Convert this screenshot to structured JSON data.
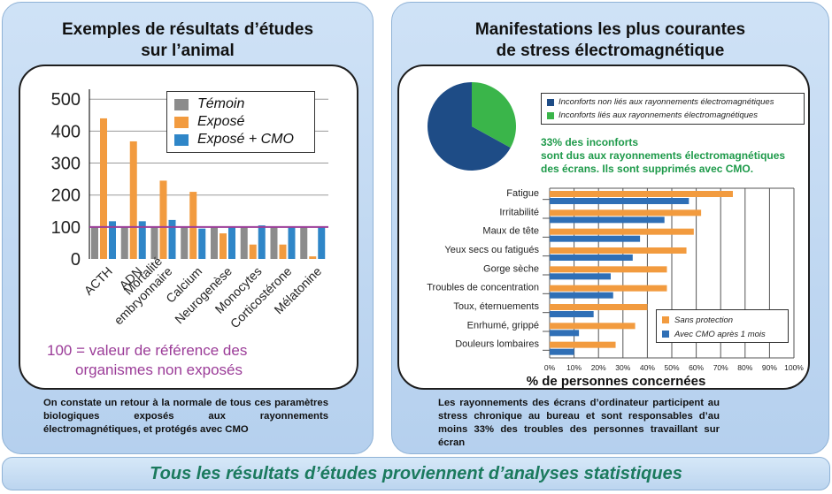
{
  "left": {
    "title_line1": "Exemples de résultats d’études",
    "title_line2": "sur l’animal",
    "note_line1": "100 = valeur de référence des",
    "note_line2": "organismes non exposés",
    "caption": "On constate un retour à la normale de tous ces paramètres biologiques exposés aux rayonnements électromagnétiques, et protégés avec CMO"
  },
  "right": {
    "title_line1": "Manifestations les plus courantes",
    "title_line2": "de stress électromagnétique",
    "highlight_line1": "33% des inconforts",
    "highlight_line2": "sont dus aux rayonnements électromagnétiques",
    "highlight_line3": "des écrans. Ils sont supprimés avec CMO.",
    "caption": "Les rayonnements des écrans d’ordinateur participent au stress chronique au bureau et sont responsables d’au moins 33% des troubles des personnes travaillant sur écran"
  },
  "footer": "Tous les résultats d’études proviennent d’analyses statistiques",
  "chart_data": [
    {
      "type": "bar",
      "categories": [
        "ACTH",
        "ADN",
        "Mortalité embryonnaire",
        "Calcium",
        "Neurogenèse",
        "Monocytes",
        "Corticostérone",
        "Mélatonine"
      ],
      "category_lines": [
        [
          "ACTH"
        ],
        [
          "ADN"
        ],
        [
          "Mortalité",
          "embryonnaire"
        ],
        [
          "Calcium"
        ],
        [
          "Neurogenèse"
        ],
        [
          "Monocytes"
        ],
        [
          "Corticostérone"
        ],
        [
          "Mélatonine"
        ]
      ],
      "series": [
        {
          "name": "Témoin",
          "color": "#8c8c8c",
          "values": [
            100,
            100,
            100,
            100,
            100,
            100,
            100,
            100
          ]
        },
        {
          "name": "Exposé",
          "color": "#f29b3f",
          "values": [
            440,
            368,
            245,
            210,
            80,
            45,
            45,
            8
          ]
        },
        {
          "name": "Exposé + CMO",
          "color": "#2f86c8",
          "values": [
            118,
            118,
            122,
            95,
            100,
            105,
            100,
            100
          ]
        }
      ],
      "yticks": [
        0,
        100,
        200,
        300,
        400,
        500
      ],
      "ylim": [
        0,
        520
      ],
      "reference_line": {
        "value": 100,
        "color": "#9b3c98"
      },
      "legend_position": "top-right",
      "grid": true
    },
    {
      "type": "pie",
      "slices": [
        {
          "label": "Inconforts non liés aux rayonnements électromagnétiques",
          "value": 67,
          "color": "#1e4c86"
        },
        {
          "label": "Inconforts liés aux rayonnements électromagnétiques",
          "value": 33,
          "color": "#3ab54a"
        }
      ],
      "legend_position": "right"
    },
    {
      "type": "bar",
      "orientation": "horizontal",
      "categories": [
        "Fatigue",
        "Irritabilité",
        "Maux de tête",
        "Yeux secs ou fatigués",
        "Gorge sèche",
        "Troubles de concentration",
        "Toux, éternuements",
        "Enrhumé, grippé",
        "Douleurs lombaires"
      ],
      "series": [
        {
          "name": "Sans protection",
          "color": "#f29b3f",
          "values": [
            75,
            62,
            59,
            56,
            48,
            48,
            40,
            35,
            27
          ]
        },
        {
          "name": "Avec CMO après 1 mois",
          "color": "#2f6fb6",
          "values": [
            57,
            47,
            37,
            34,
            25,
            26,
            18,
            12,
            10
          ]
        }
      ],
      "xticks": [
        "0%",
        "10%",
        "20%",
        "30%",
        "40%",
        "50%",
        "60%",
        "70%",
        "80%",
        "90%",
        "100%"
      ],
      "xlim": [
        0,
        100
      ],
      "xlabel": "% de personnes concernées",
      "legend_position": "bottom-right",
      "grid": true
    }
  ]
}
